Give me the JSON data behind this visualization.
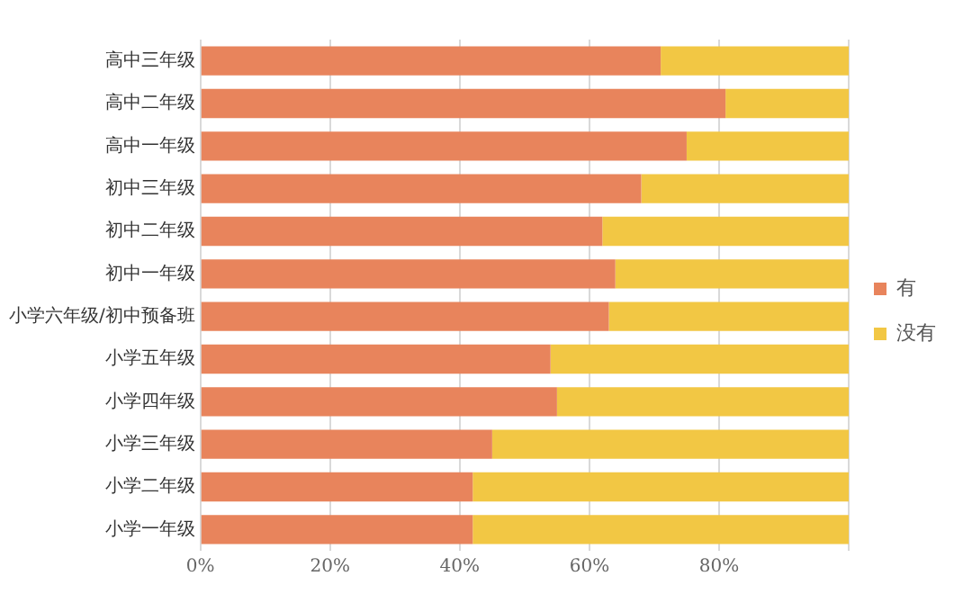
{
  "chart_data": {
    "type": "bar",
    "orientation": "horizontal",
    "stacked": true,
    "categories": [
      "高中三年级",
      "高中二年级",
      "高中一年级",
      "初中三年级",
      "初中二年级",
      "初中一年级",
      "小学六年级/初中预备班",
      "小学五年级",
      "小学四年级",
      "小学三年级",
      "小学二年级",
      "小学一年级"
    ],
    "series": [
      {
        "name": "有",
        "color": "#e8845c",
        "values": [
          71,
          81,
          75,
          68,
          62,
          64,
          63,
          54,
          55,
          45,
          42,
          42
        ]
      },
      {
        "name": "没有",
        "color": "#f2c744",
        "values": [
          29,
          19,
          25,
          32,
          38,
          36,
          37,
          46,
          45,
          55,
          58,
          58
        ]
      }
    ],
    "xlim": [
      0,
      100
    ],
    "xticks": [
      {
        "value": 0,
        "label": "0%"
      },
      {
        "value": 20,
        "label": "20%"
      },
      {
        "value": 40,
        "label": "40%"
      },
      {
        "value": 60,
        "label": "60%"
      },
      {
        "value": 80,
        "label": "80%"
      },
      {
        "value": 100,
        "label": null
      }
    ],
    "grid": "x",
    "legend": "right"
  }
}
